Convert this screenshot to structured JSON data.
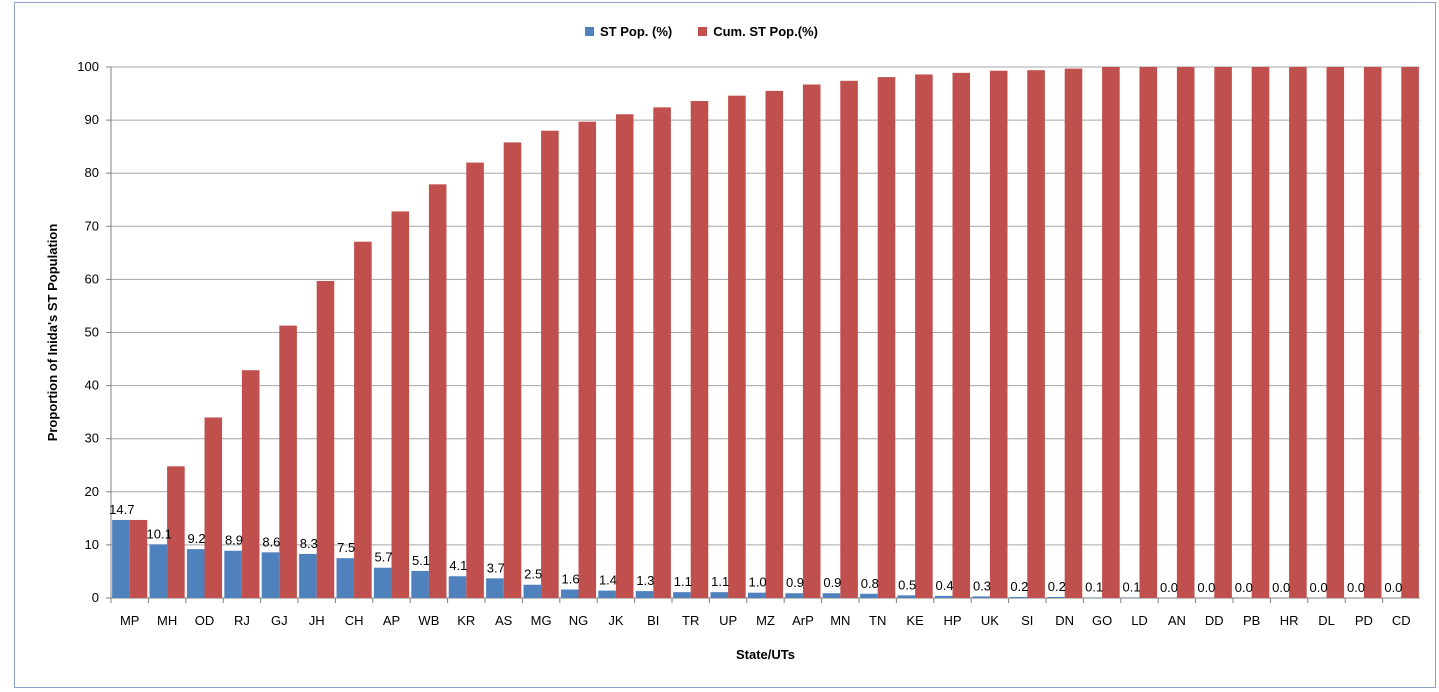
{
  "chart_data": {
    "type": "bar",
    "title": "",
    "xlabel": "State/UTs",
    "ylabel": "Proportion of Inida's ST Population",
    "ylim": [
      0,
      100
    ],
    "yticks": [
      0,
      10,
      20,
      30,
      40,
      50,
      60,
      70,
      80,
      90,
      100
    ],
    "grid": true,
    "legend_position": "top-center",
    "categories": [
      "MP",
      "MH",
      "OD",
      "RJ",
      "GJ",
      "JH",
      "CH",
      "AP",
      "WB",
      "KR",
      "AS",
      "MG",
      "NG",
      "JK",
      "BI",
      "TR",
      "UP",
      "MZ",
      "ArP",
      "MN",
      "TN",
      "KE",
      "HP",
      "UK",
      "SI",
      "DN",
      "GO",
      "LD",
      "AN",
      "DD",
      "PB",
      "HR",
      "DL",
      "PD",
      "CD"
    ],
    "series": [
      {
        "name": "ST Pop. (%)",
        "color": "#4f81bd",
        "values": [
          14.7,
          10.1,
          9.2,
          8.9,
          8.6,
          8.3,
          7.5,
          5.7,
          5.1,
          4.1,
          3.7,
          2.5,
          1.6,
          1.4,
          1.3,
          1.1,
          1.1,
          1.0,
          0.9,
          0.9,
          0.8,
          0.5,
          0.4,
          0.3,
          0.2,
          0.2,
          0.1,
          0.1,
          0.0,
          0.0,
          0.0,
          0.0,
          0.0,
          0.0,
          0.0
        ]
      },
      {
        "name": "Cum. ST Pop.(%)",
        "color": "#c0504d",
        "values": [
          14.7,
          24.8,
          34.0,
          42.9,
          51.3,
          59.7,
          67.1,
          72.8,
          77.9,
          82.0,
          85.8,
          88.0,
          89.7,
          91.1,
          92.4,
          93.6,
          94.6,
          95.5,
          96.7,
          97.4,
          98.1,
          98.6,
          98.9,
          99.3,
          99.4,
          99.7,
          100,
          100,
          100,
          100,
          100,
          100,
          100,
          100,
          100
        ]
      }
    ],
    "data_labels": [
      "14.7",
      "10.1",
      "9.2",
      "8.9",
      "8.6",
      "8.3",
      "7.5",
      "5.7",
      "5.1",
      "4.1",
      "3.7",
      "2.5",
      "1.6",
      "1.4",
      "1.3",
      "1.1",
      "1.1",
      "1.0",
      "0.9",
      "0.9",
      "0.8",
      "0.5",
      "0.4",
      "0.3",
      "0.2",
      "0.2",
      "0.1",
      "0.1",
      "0.0",
      "0.0",
      "0.0",
      "0.0",
      "0.0",
      "0.0",
      "0.0"
    ]
  }
}
